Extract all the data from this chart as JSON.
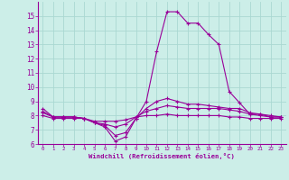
{
  "xlabel": "Windchill (Refroidissement éolien,°C)",
  "background_color": "#cceee8",
  "grid_color": "#aad8d2",
  "line_color": "#990099",
  "x_hours": [
    0,
    1,
    2,
    3,
    4,
    5,
    6,
    7,
    8,
    9,
    10,
    11,
    12,
    13,
    14,
    15,
    16,
    17,
    18,
    19,
    20,
    21,
    22,
    23
  ],
  "series1": [
    8.5,
    7.9,
    7.9,
    7.9,
    7.8,
    7.5,
    7.2,
    6.2,
    6.5,
    7.8,
    9.0,
    12.5,
    15.3,
    15.3,
    14.5,
    14.5,
    13.7,
    13.0,
    9.7,
    8.9,
    8.1,
    8.1,
    7.9,
    7.9
  ],
  "series2": [
    8.3,
    7.9,
    7.9,
    7.9,
    7.8,
    7.5,
    7.3,
    6.6,
    6.8,
    7.8,
    8.5,
    9.0,
    9.2,
    9.0,
    8.8,
    8.8,
    8.7,
    8.6,
    8.5,
    8.5,
    8.2,
    8.1,
    8.0,
    7.9
  ],
  "series3": [
    8.2,
    7.9,
    7.9,
    7.9,
    7.8,
    7.5,
    7.4,
    7.2,
    7.4,
    7.9,
    8.3,
    8.5,
    8.7,
    8.6,
    8.5,
    8.5,
    8.5,
    8.5,
    8.4,
    8.3,
    8.1,
    8.0,
    7.9,
    7.9
  ],
  "series4": [
    8.0,
    7.8,
    7.8,
    7.8,
    7.8,
    7.6,
    7.6,
    7.6,
    7.7,
    7.9,
    8.0,
    8.0,
    8.1,
    8.0,
    8.0,
    8.0,
    8.0,
    8.0,
    7.9,
    7.9,
    7.8,
    7.8,
    7.8,
    7.8
  ],
  "ylim": [
    6,
    16
  ],
  "yticks": [
    6,
    7,
    8,
    9,
    10,
    11,
    12,
    13,
    14,
    15
  ],
  "xtick_labels": [
    "0",
    "1",
    "2",
    "3",
    "4",
    "5",
    "6",
    "7",
    "8",
    "9",
    "10",
    "11",
    "12",
    "13",
    "14",
    "15",
    "16",
    "17",
    "18",
    "19",
    "20",
    "21",
    "22",
    "23"
  ]
}
